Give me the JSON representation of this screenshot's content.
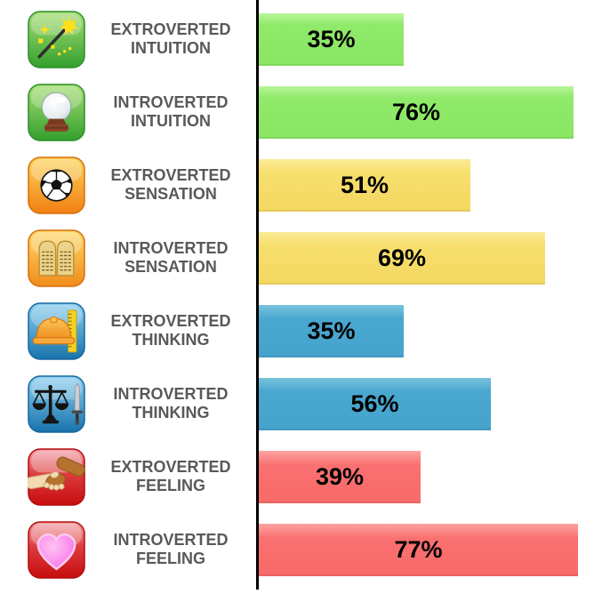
{
  "chart_data": {
    "type": "bar",
    "orientation": "horizontal",
    "title": "",
    "xlabel": "",
    "ylabel": "",
    "xlim": [
      0,
      100
    ],
    "value_suffix": "%",
    "axis_color": "#000000",
    "legend": "none",
    "grid": false,
    "categories": [
      "EXTROVERTED INTUITION",
      "INTROVERTED INTUITION",
      "EXTROVERTED SENSATION",
      "INTROVERTED SENSATION",
      "EXTROVERTED THINKING",
      "INTROVERTED THINKING",
      "EXTROVERTED FEELING",
      "INTROVERTED FEELING"
    ],
    "values": [
      35,
      76,
      51,
      69,
      35,
      56,
      39,
      77
    ],
    "rows": [
      {
        "label_line1": "EXTROVERTED",
        "label_line2": "INTUITION",
        "value": 35,
        "value_label": "35%",
        "icon": "magic-wand-icon",
        "bar_color": "#8DE967"
      },
      {
        "label_line1": "INTROVERTED",
        "label_line2": "INTUITION",
        "value": 76,
        "value_label": "76%",
        "icon": "crystal-ball-icon",
        "bar_color": "#8DE967"
      },
      {
        "label_line1": "EXTROVERTED",
        "label_line2": "SENSATION",
        "value": 51,
        "value_label": "51%",
        "icon": "soccer-ball-icon",
        "bar_color": "#F6DD69"
      },
      {
        "label_line1": "INTROVERTED",
        "label_line2": "SENSATION",
        "value": 69,
        "value_label": "69%",
        "icon": "tablets-icon",
        "bar_color": "#F6DD69"
      },
      {
        "label_line1": "EXTROVERTED",
        "label_line2": "THINKING",
        "value": 35,
        "value_label": "35%",
        "icon": "hard-hat-icon",
        "bar_color": "#48A7CF"
      },
      {
        "label_line1": "INTROVERTED",
        "label_line2": "THINKING",
        "value": 56,
        "value_label": "56%",
        "icon": "scales-icon",
        "bar_color": "#48A7CF"
      },
      {
        "label_line1": "EXTROVERTED",
        "label_line2": "FEELING",
        "value": 39,
        "value_label": "39%",
        "icon": "handshake-icon",
        "bar_color": "#FA6E6E"
      },
      {
        "label_line1": "INTROVERTED",
        "label_line2": "FEELING",
        "value": 77,
        "value_label": "77%",
        "icon": "heart-icon",
        "bar_color": "#FA6E6E"
      }
    ]
  }
}
